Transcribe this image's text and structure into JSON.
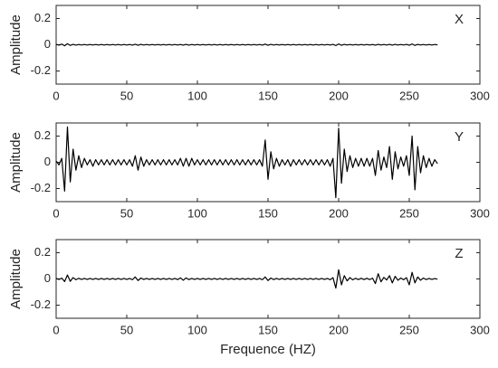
{
  "chart_data": [
    {
      "type": "line",
      "label": "X",
      "ylabel": "Amplitude",
      "x": [
        0,
        2,
        4,
        6,
        8,
        10,
        12,
        14,
        16,
        18,
        20,
        22,
        24,
        26,
        28,
        30,
        32,
        34,
        36,
        38,
        40,
        42,
        44,
        46,
        48,
        50,
        52,
        54,
        56,
        58,
        60,
        62,
        64,
        66,
        68,
        70,
        72,
        74,
        76,
        78,
        80,
        82,
        84,
        86,
        88,
        90,
        92,
        94,
        96,
        98,
        100,
        102,
        104,
        106,
        108,
        110,
        112,
        114,
        116,
        118,
        120,
        122,
        124,
        126,
        128,
        130,
        132,
        134,
        136,
        138,
        140,
        142,
        144,
        146,
        148,
        150,
        152,
        154,
        156,
        158,
        160,
        162,
        164,
        166,
        168,
        170,
        172,
        174,
        176,
        178,
        180,
        182,
        184,
        186,
        188,
        190,
        192,
        194,
        196,
        198,
        200,
        202,
        204,
        206,
        208,
        210,
        212,
        214,
        216,
        218,
        220,
        222,
        224,
        226,
        228,
        230,
        232,
        234,
        236,
        238,
        240,
        242,
        244,
        246,
        248,
        250,
        252,
        254,
        256,
        258,
        260,
        262,
        264,
        266,
        268,
        270
      ],
      "series": [
        {
          "color": "#000000",
          "values": [
            0.003,
            -0.003,
            0.005,
            -0.008,
            0.008,
            -0.005,
            0.003,
            -0.003,
            0.002,
            -0.002,
            0.002,
            -0.002,
            0.002,
            -0.002,
            0.002,
            -0.002,
            0.002,
            -0.002,
            0.002,
            -0.002,
            0.002,
            -0.002,
            0.002,
            -0.002,
            0.002,
            -0.002,
            0.002,
            -0.003,
            0.004,
            -0.004,
            0.003,
            -0.002,
            0.002,
            -0.002,
            0.002,
            -0.002,
            0.002,
            -0.002,
            0.002,
            -0.002,
            0.002,
            -0.002,
            0.002,
            -0.002,
            0.002,
            -0.003,
            0.003,
            -0.003,
            0.002,
            -0.002,
            0.002,
            -0.002,
            0.002,
            -0.002,
            0.002,
            -0.002,
            0.002,
            -0.002,
            0.002,
            -0.002,
            0.002,
            -0.002,
            0.002,
            -0.002,
            0.002,
            -0.002,
            0.002,
            -0.002,
            0.002,
            -0.002,
            0.002,
            -0.002,
            0.002,
            -0.003,
            0.005,
            -0.004,
            0.003,
            -0.002,
            0.002,
            -0.002,
            0.002,
            -0.002,
            0.002,
            -0.002,
            0.002,
            -0.002,
            0.002,
            -0.002,
            0.002,
            -0.002,
            0.002,
            -0.002,
            0.002,
            -0.002,
            0.002,
            -0.002,
            0.002,
            -0.002,
            0.003,
            -0.006,
            0.006,
            -0.004,
            0.003,
            -0.002,
            0.002,
            -0.002,
            0.002,
            -0.002,
            0.002,
            -0.002,
            0.002,
            -0.002,
            0.002,
            -0.003,
            0.003,
            -0.002,
            0.002,
            -0.002,
            0.003,
            -0.003,
            0.003,
            -0.002,
            0.002,
            -0.002,
            0.003,
            -0.004,
            0.006,
            -0.005,
            0.003,
            -0.002,
            0.002,
            -0.002,
            0.002,
            -0.002,
            0.002,
            -0.001
          ]
        }
      ],
      "xlim": [
        0,
        300
      ],
      "xticks": [
        0,
        50,
        100,
        150,
        200,
        250,
        300
      ],
      "ylim": [
        -0.3,
        0.3
      ],
      "yticks": [
        -0.2,
        0,
        0.2
      ]
    },
    {
      "type": "line",
      "label": "Y",
      "ylabel": "Amplitude",
      "x": [
        0,
        2,
        4,
        6,
        8,
        10,
        12,
        14,
        16,
        18,
        20,
        22,
        24,
        26,
        28,
        30,
        32,
        34,
        36,
        38,
        40,
        42,
        44,
        46,
        48,
        50,
        52,
        54,
        56,
        58,
        60,
        62,
        64,
        66,
        68,
        70,
        72,
        74,
        76,
        78,
        80,
        82,
        84,
        86,
        88,
        90,
        92,
        94,
        96,
        98,
        100,
        102,
        104,
        106,
        108,
        110,
        112,
        114,
        116,
        118,
        120,
        122,
        124,
        126,
        128,
        130,
        132,
        134,
        136,
        138,
        140,
        142,
        144,
        146,
        148,
        150,
        152,
        154,
        156,
        158,
        160,
        162,
        164,
        166,
        168,
        170,
        172,
        174,
        176,
        178,
        180,
        182,
        184,
        186,
        188,
        190,
        192,
        194,
        196,
        198,
        200,
        202,
        204,
        206,
        208,
        210,
        212,
        214,
        216,
        218,
        220,
        222,
        224,
        226,
        228,
        230,
        232,
        234,
        236,
        238,
        240,
        242,
        244,
        246,
        248,
        250,
        252,
        254,
        256,
        258,
        260,
        262,
        264,
        266,
        268,
        270
      ],
      "series": [
        {
          "color": "#000000",
          "values": [
            0.01,
            -0.02,
            0.03,
            -0.22,
            0.27,
            -0.15,
            0.1,
            -0.06,
            0.05,
            -0.04,
            0.03,
            -0.02,
            0.02,
            -0.03,
            0.02,
            -0.02,
            0.02,
            -0.02,
            0.02,
            -0.02,
            0.02,
            -0.02,
            0.02,
            -0.02,
            0.02,
            -0.02,
            0.02,
            -0.03,
            0.05,
            -0.06,
            0.04,
            -0.03,
            0.02,
            -0.02,
            0.02,
            -0.02,
            0.02,
            -0.02,
            0.02,
            -0.02,
            0.02,
            -0.02,
            0.02,
            -0.02,
            0.03,
            -0.03,
            0.03,
            -0.03,
            0.03,
            -0.02,
            0.02,
            -0.02,
            0.02,
            -0.02,
            0.02,
            -0.02,
            0.02,
            -0.02,
            0.02,
            -0.02,
            0.02,
            -0.02,
            0.02,
            -0.02,
            0.02,
            -0.02,
            0.02,
            -0.02,
            0.02,
            -0.02,
            0.02,
            -0.02,
            0.02,
            -0.03,
            0.17,
            -0.13,
            0.08,
            -0.05,
            0.03,
            -0.03,
            0.02,
            -0.02,
            0.02,
            -0.03,
            0.02,
            -0.02,
            0.02,
            -0.02,
            0.02,
            -0.02,
            0.02,
            -0.02,
            0.02,
            -0.02,
            0.02,
            -0.02,
            0.02,
            -0.03,
            0.03,
            -0.27,
            0.26,
            -0.16,
            0.1,
            -0.07,
            0.05,
            -0.04,
            0.03,
            -0.03,
            0.03,
            -0.03,
            0.03,
            -0.03,
            0.03,
            -0.1,
            0.09,
            -0.06,
            0.04,
            -0.04,
            0.12,
            -0.13,
            0.08,
            -0.05,
            0.04,
            -0.03,
            0.05,
            -0.1,
            0.2,
            -0.21,
            0.12,
            -0.08,
            0.05,
            -0.04,
            0.03,
            -0.03,
            0.02,
            -0.01
          ]
        }
      ],
      "xlim": [
        0,
        300
      ],
      "xticks": [
        0,
        50,
        100,
        150,
        200,
        250,
        300
      ],
      "ylim": [
        -0.3,
        0.3
      ],
      "yticks": [
        -0.2,
        0,
        0.2
      ]
    },
    {
      "type": "line",
      "label": "Z",
      "ylabel": "Amplitude",
      "xlabel": "Frequence (HZ)",
      "x": [
        0,
        2,
        4,
        6,
        8,
        10,
        12,
        14,
        16,
        18,
        20,
        22,
        24,
        26,
        28,
        30,
        32,
        34,
        36,
        38,
        40,
        42,
        44,
        46,
        48,
        50,
        52,
        54,
        56,
        58,
        60,
        62,
        64,
        66,
        68,
        70,
        72,
        74,
        76,
        78,
        80,
        82,
        84,
        86,
        88,
        90,
        92,
        94,
        96,
        98,
        100,
        102,
        104,
        106,
        108,
        110,
        112,
        114,
        116,
        118,
        120,
        122,
        124,
        126,
        128,
        130,
        132,
        134,
        136,
        138,
        140,
        142,
        144,
        146,
        148,
        150,
        152,
        154,
        156,
        158,
        160,
        162,
        164,
        166,
        168,
        170,
        172,
        174,
        176,
        178,
        180,
        182,
        184,
        186,
        188,
        190,
        192,
        194,
        196,
        198,
        200,
        202,
        204,
        206,
        208,
        210,
        212,
        214,
        216,
        218,
        220,
        222,
        224,
        226,
        228,
        230,
        232,
        234,
        236,
        238,
        240,
        242,
        244,
        246,
        248,
        250,
        252,
        254,
        256,
        258,
        260,
        262,
        264,
        266,
        268,
        270
      ],
      "series": [
        {
          "color": "#000000",
          "values": [
            0.004,
            -0.004,
            0.006,
            -0.02,
            0.03,
            -0.018,
            0.01,
            -0.006,
            0.005,
            -0.004,
            0.004,
            -0.004,
            0.004,
            -0.004,
            0.004,
            -0.004,
            0.004,
            -0.004,
            0.004,
            -0.004,
            0.004,
            -0.004,
            0.004,
            -0.004,
            0.004,
            -0.004,
            0.004,
            -0.006,
            0.015,
            -0.012,
            0.007,
            -0.004,
            0.004,
            -0.004,
            0.004,
            -0.004,
            0.004,
            -0.004,
            0.004,
            -0.004,
            0.004,
            -0.004,
            0.004,
            -0.005,
            0.008,
            -0.01,
            0.008,
            -0.005,
            0.004,
            -0.004,
            0.004,
            -0.004,
            0.004,
            -0.004,
            0.004,
            -0.004,
            0.004,
            -0.004,
            0.004,
            -0.004,
            0.004,
            -0.004,
            0.004,
            -0.004,
            0.004,
            -0.004,
            0.004,
            -0.004,
            0.004,
            -0.004,
            0.004,
            -0.004,
            0.004,
            -0.006,
            0.015,
            -0.012,
            0.007,
            -0.005,
            0.004,
            -0.004,
            0.004,
            -0.004,
            0.004,
            -0.004,
            0.004,
            -0.004,
            0.004,
            -0.004,
            0.004,
            -0.004,
            0.004,
            -0.004,
            0.004,
            -0.004,
            0.004,
            -0.004,
            0.004,
            -0.006,
            0.01,
            -0.07,
            0.07,
            -0.045,
            0.025,
            -0.015,
            0.01,
            -0.007,
            0.005,
            -0.005,
            0.005,
            -0.005,
            0.005,
            -0.005,
            0.006,
            -0.035,
            0.04,
            -0.022,
            0.012,
            -0.008,
            0.025,
            -0.03,
            0.02,
            -0.01,
            0.007,
            -0.006,
            0.01,
            -0.045,
            0.05,
            -0.03,
            0.015,
            -0.01,
            0.007,
            -0.005,
            0.004,
            -0.004,
            0.003,
            -0.002
          ]
        }
      ],
      "xlim": [
        0,
        300
      ],
      "xticks": [
        0,
        50,
        100,
        150,
        200,
        250,
        300
      ],
      "ylim": [
        -0.3,
        0.3
      ],
      "yticks": [
        -0.2,
        0,
        0.2
      ]
    }
  ]
}
